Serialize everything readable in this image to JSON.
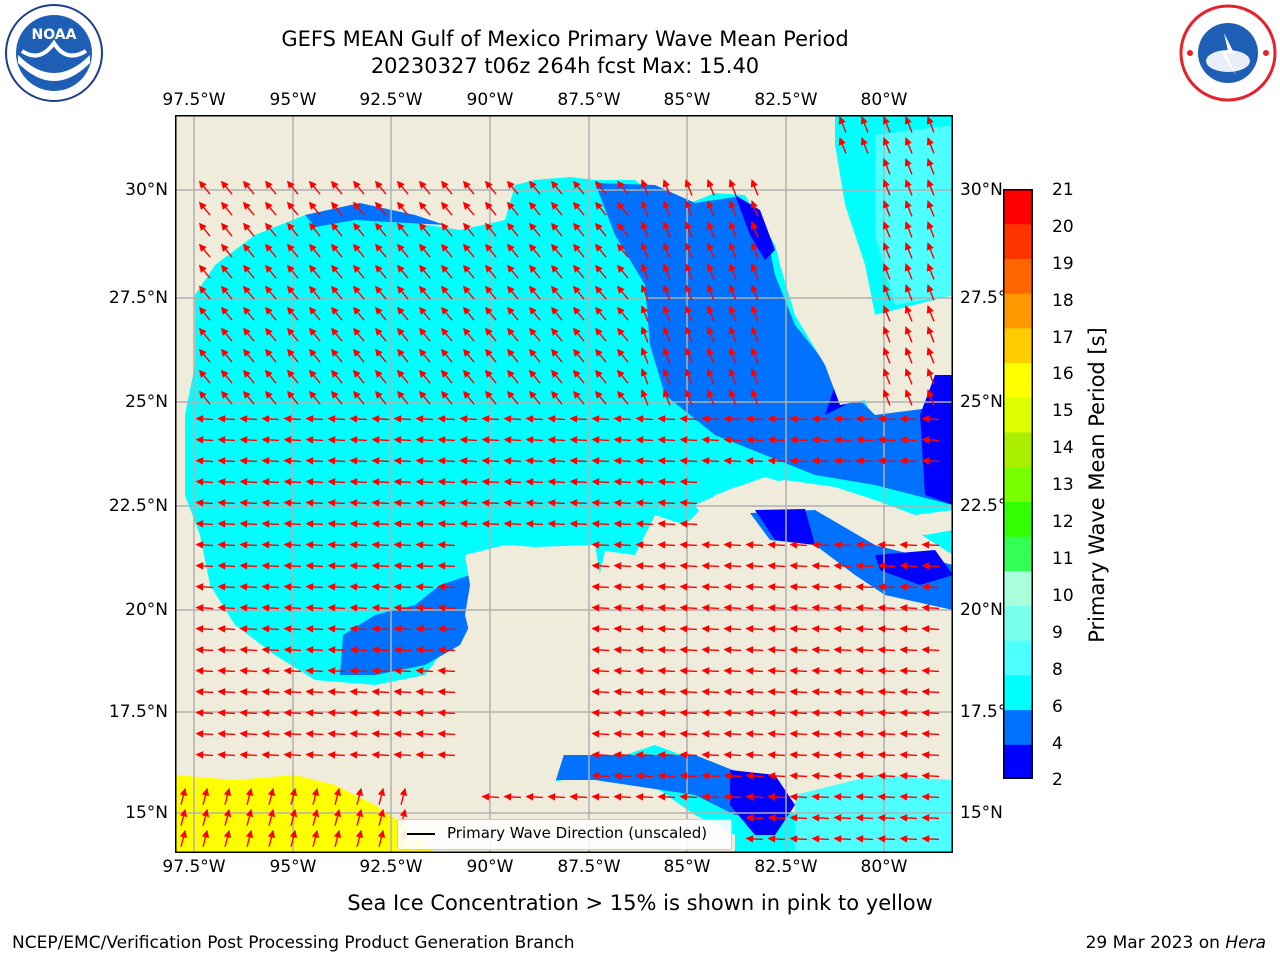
{
  "header": {
    "title_line1": "GEFS MEAN Gulf of Mexico Primary Wave Mean Period",
    "title_line2": "20230327 t06z 264h fcst   Max: 15.40"
  },
  "logos": {
    "left": {
      "name": "NOAA",
      "text": "NOAA",
      "ring_text": "NATIONAL OCEANIC AND ATMOSPHERIC ADMINISTRATION · U.S. DEPARTMENT OF COMMERCE"
    },
    "right": {
      "name": "National Weather Service",
      "ring_text": "NATIONAL WEATHER SERVICE"
    }
  },
  "axes": {
    "lon_labels": [
      "97.5°W",
      "95°W",
      "92.5°W",
      "90°W",
      "87.5°W",
      "85°W",
      "82.5°W",
      "80°W"
    ],
    "lon_values": [
      -97.5,
      -95,
      -92.5,
      -90,
      -87.5,
      -85,
      -82.5,
      -80
    ],
    "lat_labels": [
      "30°N",
      "27.5°N",
      "25°N",
      "22.5°N",
      "20°N",
      "17.5°N",
      "15°N"
    ],
    "lat_values": [
      30,
      27.5,
      25,
      22.5,
      20,
      17.5,
      15
    ],
    "lon_range": [
      -98,
      -78.25
    ],
    "lat_range": [
      14,
      31.8
    ]
  },
  "colorbar": {
    "title": "Primary Wave Mean Period [s]",
    "ticks": [
      "21",
      "20",
      "19",
      "18",
      "17",
      "16",
      "15",
      "14",
      "13",
      "12",
      "11",
      "10",
      "9",
      "8",
      "6",
      "4",
      "2"
    ],
    "colors": [
      "#0000ff",
      "#0072ff",
      "#00ffff",
      "#4dffff",
      "#7affee",
      "#aaffdd",
      "#33ff55",
      "#33ff00",
      "#77ff00",
      "#aaee00",
      "#ddff00",
      "#ffff00",
      "#ffcc00",
      "#ff9900",
      "#ff6600",
      "#ff3300",
      "#ff0000"
    ]
  },
  "legend": {
    "label": "Primary Wave Direction (unscaled)"
  },
  "note": "Sea Ice Concentration > 15% is shown in pink to yellow",
  "footer": {
    "left": "NCEP/EMC/Verification Post Processing Product Generation Branch",
    "right_date": "29 Mar 2023 on ",
    "right_host": "Hera"
  },
  "map_colors": {
    "land": "#efecdc",
    "water_cyan": "#00ffff",
    "water_blue": "#0072ff",
    "water_dark": "#0000ff",
    "water_light": "#4dffff",
    "yellow": "#ffff00",
    "arrow": "#ff0000",
    "grid": "#b0b0b0"
  }
}
